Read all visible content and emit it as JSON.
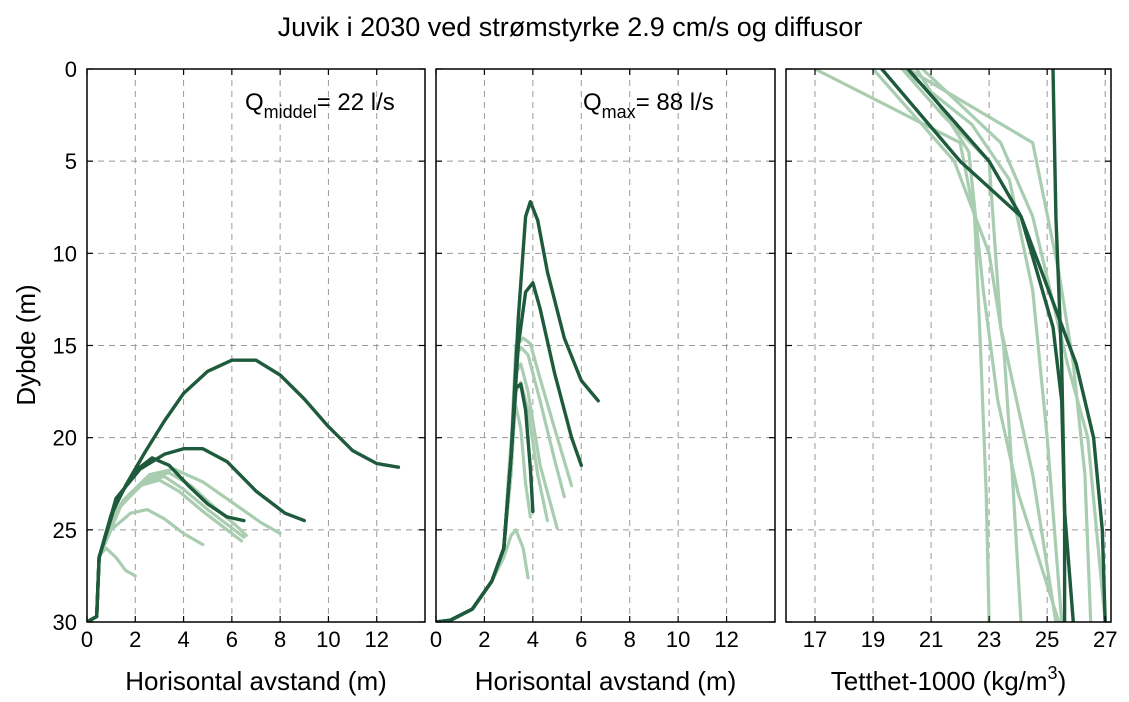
{
  "title": "Juvik i 2030 ved strømstyrke 2.9 cm/s og diffusor",
  "colors": {
    "dark": "#1e5a3c",
    "light": "#a9cdb0",
    "grid": "#9a9a9a",
    "frame": "#000000"
  },
  "chart_data": [
    {
      "type": "line",
      "panel": "middel",
      "xlabel": "Horisontal avstand (m)",
      "ylabel": "Dybde (m)",
      "xlim": [
        0,
        14
      ],
      "ylim": [
        0,
        30
      ],
      "y_reversed": true,
      "xticks": [
        0,
        2,
        4,
        6,
        8,
        10,
        12
      ],
      "yticks": [
        0,
        5,
        10,
        15,
        20,
        25,
        30
      ],
      "grid": true,
      "annotation": {
        "prefix": "Q",
        "subscript": "middel",
        "suffix": "= 22 l/s"
      },
      "series": [
        {
          "style": "light",
          "x": [
            0,
            0.4,
            0.5,
            0.8,
            1.2,
            1.6,
            2.0
          ],
          "y": [
            30,
            29.7,
            26.4,
            26.0,
            26.5,
            27.2,
            27.5
          ]
        },
        {
          "style": "light",
          "x": [
            0,
            0.4,
            0.5,
            1.0,
            1.8,
            2.5,
            3.2,
            4.0,
            4.8
          ],
          "y": [
            30,
            29.7,
            26.5,
            25.0,
            24.1,
            23.9,
            24.4,
            25.2,
            25.8
          ]
        },
        {
          "style": "light",
          "x": [
            0,
            0.4,
            0.5,
            1.2,
            2.2,
            3.0,
            3.8,
            4.8,
            5.8,
            6.4
          ],
          "y": [
            30,
            29.7,
            26.5,
            24.0,
            22.6,
            22.3,
            22.9,
            24.0,
            25.0,
            25.6
          ]
        },
        {
          "style": "light",
          "x": [
            0,
            0.4,
            0.5,
            1.3,
            2.4,
            3.2,
            4.0,
            5.0,
            6.0,
            6.5
          ],
          "y": [
            30,
            29.7,
            26.5,
            23.8,
            22.4,
            22.1,
            22.8,
            23.9,
            24.9,
            25.4
          ]
        },
        {
          "style": "light",
          "x": [
            0,
            0.4,
            0.5,
            1.4,
            2.5,
            3.4,
            4.3,
            5.3,
            6.2,
            6.6
          ],
          "y": [
            30,
            29.7,
            26.5,
            23.6,
            22.2,
            21.9,
            22.6,
            23.8,
            24.8,
            25.3
          ]
        },
        {
          "style": "light",
          "x": [
            0,
            0.4,
            0.5,
            1.5,
            2.6,
            3.6,
            4.8,
            6.0,
            7.2,
            8.0
          ],
          "y": [
            30,
            29.7,
            26.5,
            23.4,
            22.0,
            21.7,
            22.4,
            23.5,
            24.6,
            25.2
          ]
        },
        {
          "style": "dark",
          "x": [
            0,
            0.4,
            0.5,
            1.2,
            2.0,
            2.7,
            3.4,
            4.2,
            5.0,
            5.8,
            6.5
          ],
          "y": [
            30,
            29.7,
            26.5,
            23.5,
            21.8,
            21.1,
            21.5,
            22.6,
            23.6,
            24.3,
            24.5
          ]
        },
        {
          "style": "dark",
          "x": [
            0,
            0.4,
            0.5,
            1.2,
            2.2,
            3.2,
            4.0,
            4.8,
            5.8,
            7.0,
            8.2,
            9.0
          ],
          "y": [
            30,
            29.7,
            26.5,
            23.3,
            21.7,
            20.9,
            20.6,
            20.6,
            21.3,
            22.9,
            24.1,
            24.5
          ]
        },
        {
          "style": "dark",
          "x": [
            0,
            0.4,
            0.5,
            1.0,
            1.6,
            2.4,
            3.2,
            4.0,
            5.0,
            6.0,
            7.0,
            8.0,
            9.0,
            10.0,
            11.0,
            12.0,
            12.9
          ],
          "y": [
            30,
            29.7,
            26.5,
            24.2,
            22.6,
            20.8,
            19.1,
            17.6,
            16.4,
            15.8,
            15.8,
            16.6,
            17.9,
            19.4,
            20.7,
            21.4,
            21.6
          ]
        }
      ]
    },
    {
      "type": "line",
      "panel": "max",
      "xlabel": "Horisontal avstand (m)",
      "ylabel": "",
      "xlim": [
        0,
        14
      ],
      "ylim": [
        0,
        30
      ],
      "y_reversed": true,
      "xticks": [
        0,
        2,
        4,
        6,
        8,
        10,
        12
      ],
      "yticks": [
        0,
        5,
        10,
        15,
        20,
        25,
        30
      ],
      "grid": true,
      "annotation": {
        "prefix": "Q",
        "subscript": "max",
        "suffix": "= 88 l/s"
      },
      "series": [
        {
          "style": "light",
          "x": [
            0,
            0.6,
            1.5,
            2.3,
            2.8,
            3.1,
            3.3,
            3.6,
            3.8
          ],
          "y": [
            30,
            29.9,
            29.3,
            27.8,
            26.5,
            25.3,
            25.0,
            26.0,
            27.6
          ]
        },
        {
          "style": "light",
          "x": [
            0,
            0.6,
            1.5,
            2.3,
            2.8,
            3.0,
            3.2,
            3.3,
            3.5,
            3.7,
            3.9
          ],
          "y": [
            30,
            29.9,
            29.3,
            27.8,
            26.0,
            22.0,
            18.5,
            18.3,
            19.5,
            22.5,
            24.3
          ]
        },
        {
          "style": "light",
          "x": [
            0,
            0.6,
            1.5,
            2.3,
            2.8,
            3.1,
            3.3,
            3.5,
            3.8,
            4.2,
            4.6
          ],
          "y": [
            30,
            29.9,
            29.3,
            27.8,
            26.0,
            22.0,
            17.5,
            17.0,
            18.5,
            22.0,
            24.5
          ]
        },
        {
          "style": "light",
          "x": [
            0,
            0.6,
            1.5,
            2.3,
            2.8,
            3.1,
            3.3,
            3.5,
            3.8,
            4.3,
            5.0
          ],
          "y": [
            30,
            29.9,
            29.3,
            27.8,
            26.0,
            21.5,
            16.5,
            16.0,
            17.5,
            21.5,
            24.9
          ]
        },
        {
          "style": "light",
          "x": [
            0,
            0.6,
            1.5,
            2.3,
            2.8,
            3.1,
            3.3,
            3.5,
            3.8,
            4.3,
            4.9,
            5.3
          ],
          "y": [
            30,
            29.9,
            29.3,
            27.8,
            26.0,
            21.0,
            15.6,
            15.1,
            15.5,
            18.0,
            21.2,
            23.2
          ]
        },
        {
          "style": "light",
          "x": [
            0,
            0.6,
            1.5,
            2.3,
            2.8,
            3.1,
            3.3,
            3.6,
            3.9,
            4.3,
            4.9,
            5.6
          ],
          "y": [
            30,
            29.9,
            29.3,
            27.8,
            26.0,
            20.5,
            15.0,
            14.6,
            14.9,
            16.8,
            19.5,
            22.6
          ]
        },
        {
          "style": "dark",
          "x": [
            0,
            0.6,
            1.5,
            2.3,
            2.8,
            3.1,
            3.3,
            3.5,
            3.7,
            3.9,
            4.0
          ],
          "y": [
            30,
            29.9,
            29.3,
            27.8,
            26.0,
            21.0,
            17.3,
            17.1,
            18.5,
            21.7,
            24.0
          ]
        },
        {
          "style": "dark",
          "x": [
            0,
            0.6,
            1.5,
            2.3,
            2.8,
            3.1,
            3.4,
            3.7,
            4.0,
            4.3,
            4.9,
            5.6,
            6.0
          ],
          "y": [
            30,
            29.9,
            29.3,
            27.8,
            26.0,
            21.0,
            15.0,
            12.1,
            11.6,
            13.0,
            16.5,
            20.0,
            21.5
          ]
        },
        {
          "style": "dark",
          "x": [
            0,
            0.6,
            1.5,
            2.3,
            2.8,
            3.1,
            3.4,
            3.7,
            3.9,
            4.2,
            4.6,
            5.3,
            6.0,
            6.7
          ],
          "y": [
            30,
            29.9,
            29.3,
            27.8,
            26.0,
            21.0,
            13.5,
            8.0,
            7.2,
            8.2,
            11.0,
            14.6,
            16.9,
            18.0
          ]
        }
      ]
    },
    {
      "type": "line",
      "panel": "density",
      "xlabel": "Tetthet-1000 (kg/m",
      "xlabel_superscript": "3",
      "xlabel_suffix": ")",
      "ylabel": "",
      "xlim": [
        16,
        27.2
      ],
      "ylim": [
        0,
        30
      ],
      "y_reversed": true,
      "xticks": [
        17,
        19,
        21,
        23,
        25,
        27
      ],
      "yticks": [
        0,
        5,
        10,
        15,
        20,
        25,
        30
      ],
      "grid": true,
      "series": [
        {
          "style": "light",
          "x": [
            17.0,
            22.0,
            22.5,
            22.7,
            22.9,
            23.0
          ],
          "y": [
            0,
            4.0,
            8.0,
            15.0,
            23.0,
            30.0
          ]
        },
        {
          "style": "light",
          "x": [
            19.0,
            21.8,
            23.0,
            23.5,
            23.8,
            24.1
          ],
          "y": [
            0,
            5.0,
            10.0,
            15.0,
            22.0,
            30.0
          ]
        },
        {
          "style": "light",
          "x": [
            20.0,
            21.4,
            23.0,
            23.4,
            24.5,
            25.3
          ],
          "y": [
            0,
            2.5,
            5.0,
            14.0,
            22.0,
            30.0
          ]
        },
        {
          "style": "light",
          "x": [
            20.5,
            22.3,
            22.8,
            23.3,
            24.0,
            25.4
          ],
          "y": [
            0,
            4.5,
            12.0,
            18.0,
            23.0,
            30.0
          ]
        },
        {
          "style": "light",
          "x": [
            20.0,
            22.4,
            23.7,
            24.5,
            25.0,
            25.5
          ],
          "y": [
            0,
            3.0,
            6.0,
            12.0,
            20.0,
            30.0
          ]
        },
        {
          "style": "light",
          "x": [
            20.2,
            24.5,
            25.4,
            25.9,
            26.3,
            26.5
          ],
          "y": [
            0,
            4.0,
            11.0,
            16.0,
            22.0,
            30.0
          ]
        },
        {
          "style": "light",
          "x": [
            20.7,
            23.4,
            24.5,
            25.7,
            26.4,
            27.0
          ],
          "y": [
            0,
            4.0,
            8.0,
            16.0,
            20.0,
            30.0
          ]
        },
        {
          "style": "dark",
          "x": [
            19.3,
            22.0,
            24.1,
            25.2,
            25.5,
            25.6,
            25.9
          ],
          "y": [
            0,
            5.0,
            8.0,
            14.0,
            18.0,
            24.0,
            30.0
          ]
        },
        {
          "style": "dark",
          "x": [
            20.2,
            23.0,
            24.1,
            26.0,
            26.6,
            26.9,
            27.0
          ],
          "y": [
            0,
            5.0,
            8.0,
            16.0,
            20.0,
            25.0,
            30.0
          ]
        },
        {
          "style": "dark",
          "x": [
            25.2,
            25.3,
            25.5,
            25.6,
            25.6
          ],
          "y": [
            0,
            8.0,
            16.0,
            24.0,
            30.0
          ]
        }
      ]
    }
  ]
}
